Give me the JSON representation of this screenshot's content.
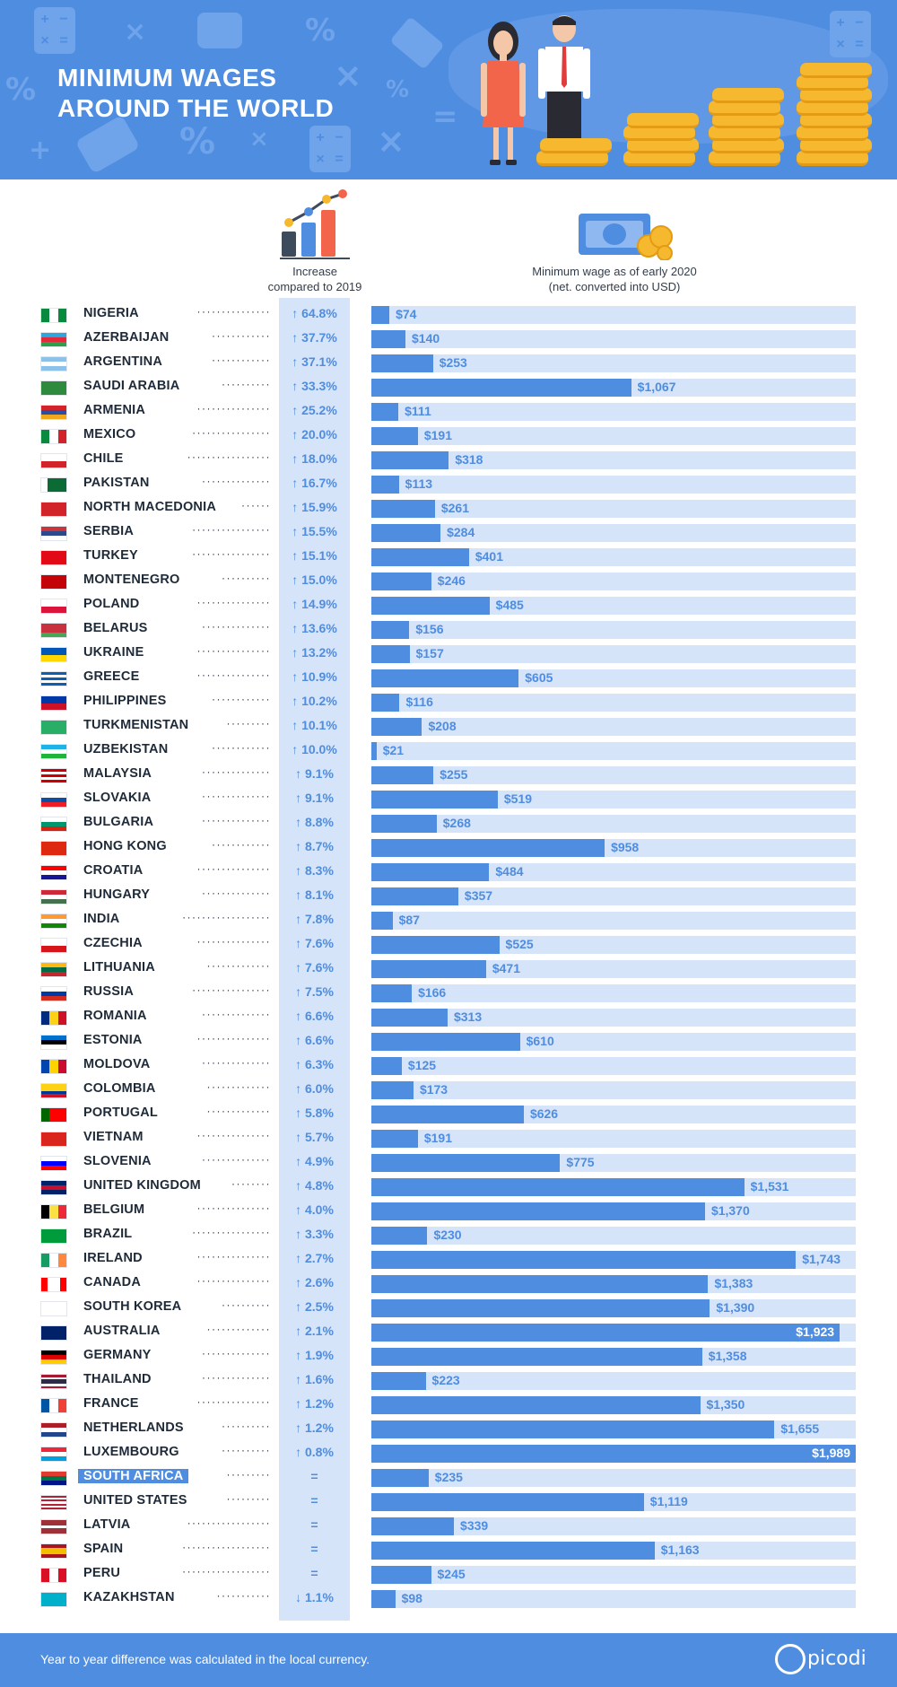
{
  "header": {
    "title_line1": "MINIMUM WAGES",
    "title_line2": "AROUND THE WORLD"
  },
  "columns": {
    "increase_line1": "Increase",
    "increase_line2": "compared to 2019",
    "wage_line1": "Minimum wage as of early 2020",
    "wage_line2": "(net. converted into USD)"
  },
  "footer": {
    "note": "Year to year difference was calculated in the local currency.",
    "brand": "picodi"
  },
  "colors": {
    "accent": "#4f8de0",
    "track": "#d5e4f8",
    "text": "#1f2a38"
  },
  "chart_data": {
    "type": "bar",
    "orientation": "horizontal",
    "xlim": [
      0,
      1989
    ],
    "rows": [
      {
        "country": "NIGERIA",
        "increase": "↑ 64.8%",
        "wage": 74,
        "label": "$74",
        "flag": "nigeria"
      },
      {
        "country": "AZERBAIJAN",
        "increase": "↑ 37.7%",
        "wage": 140,
        "label": "$140",
        "flag": "azerbaijan"
      },
      {
        "country": "ARGENTINA",
        "increase": "↑ 37.1%",
        "wage": 253,
        "label": "$253",
        "flag": "argentina"
      },
      {
        "country": "SAUDI ARABIA",
        "increase": "↑ 33.3%",
        "wage": 1067,
        "label": "$1,067",
        "flag": "saudi-arabia"
      },
      {
        "country": "ARMENIA",
        "increase": "↑ 25.2%",
        "wage": 111,
        "label": "$111",
        "flag": "armenia"
      },
      {
        "country": "MEXICO",
        "increase": "↑ 20.0%",
        "wage": 191,
        "label": "$191",
        "flag": "mexico"
      },
      {
        "country": "CHILE",
        "increase": "↑ 18.0%",
        "wage": 318,
        "label": "$318",
        "flag": "chile"
      },
      {
        "country": "PAKISTAN",
        "increase": "↑ 16.7%",
        "wage": 113,
        "label": "$113",
        "flag": "pakistan"
      },
      {
        "country": "NORTH MACEDONIA",
        "increase": "↑ 15.9%",
        "wage": 261,
        "label": "$261",
        "flag": "north-macedonia"
      },
      {
        "country": "SERBIA",
        "increase": "↑ 15.5%",
        "wage": 284,
        "label": "$284",
        "flag": "serbia"
      },
      {
        "country": "TURKEY",
        "increase": "↑ 15.1%",
        "wage": 401,
        "label": "$401",
        "flag": "turkey"
      },
      {
        "country": "MONTENEGRO",
        "increase": "↑ 15.0%",
        "wage": 246,
        "label": "$246",
        "flag": "montenegro"
      },
      {
        "country": "POLAND",
        "increase": "↑ 14.9%",
        "wage": 485,
        "label": "$485",
        "flag": "poland"
      },
      {
        "country": "BELARUS",
        "increase": "↑ 13.6%",
        "wage": 156,
        "label": "$156",
        "flag": "belarus"
      },
      {
        "country": "UKRAINE",
        "increase": "↑ 13.2%",
        "wage": 157,
        "label": "$157",
        "flag": "ukraine"
      },
      {
        "country": "GREECE",
        "increase": "↑ 10.9%",
        "wage": 605,
        "label": "$605",
        "flag": "greece"
      },
      {
        "country": "PHILIPPINES",
        "increase": "↑ 10.2%",
        "wage": 116,
        "label": "$116",
        "flag": "philippines"
      },
      {
        "country": "TURKMENISTAN",
        "increase": "↑ 10.1%",
        "wage": 208,
        "label": "$208",
        "flag": "turkmenistan"
      },
      {
        "country": "UZBEKISTAN",
        "increase": "↑ 10.0%",
        "wage": 21,
        "label": "$21",
        "flag": "uzbekistan"
      },
      {
        "country": "MALAYSIA",
        "increase": "↑ 9.1%",
        "wage": 255,
        "label": "$255",
        "flag": "malaysia"
      },
      {
        "country": "SLOVAKIA",
        "increase": "↑ 9.1%",
        "wage": 519,
        "label": "$519",
        "flag": "slovakia"
      },
      {
        "country": "BULGARIA",
        "increase": "↑ 8.8%",
        "wage": 268,
        "label": "$268",
        "flag": "bulgaria"
      },
      {
        "country": "HONG KONG",
        "increase": "↑ 8.7%",
        "wage": 958,
        "label": "$958",
        "flag": "hong-kong"
      },
      {
        "country": "CROATIA",
        "increase": "↑ 8.3%",
        "wage": 484,
        "label": "$484",
        "flag": "croatia"
      },
      {
        "country": "HUNGARY",
        "increase": "↑ 8.1%",
        "wage": 357,
        "label": "$357",
        "flag": "hungary"
      },
      {
        "country": "INDIA",
        "increase": "↑ 7.8%",
        "wage": 87,
        "label": "$87",
        "flag": "india"
      },
      {
        "country": "CZECHIA",
        "increase": "↑ 7.6%",
        "wage": 525,
        "label": "$525",
        "flag": "czechia"
      },
      {
        "country": "LITHUANIA",
        "increase": "↑ 7.6%",
        "wage": 471,
        "label": "$471",
        "flag": "lithuania"
      },
      {
        "country": "RUSSIA",
        "increase": "↑ 7.5%",
        "wage": 166,
        "label": "$166",
        "flag": "russia"
      },
      {
        "country": "ROMANIA",
        "increase": "↑ 6.6%",
        "wage": 313,
        "label": "$313",
        "flag": "romania"
      },
      {
        "country": "ESTONIA",
        "increase": "↑ 6.6%",
        "wage": 610,
        "label": "$610",
        "flag": "estonia"
      },
      {
        "country": "MOLDOVA",
        "increase": "↑ 6.3%",
        "wage": 125,
        "label": "$125",
        "flag": "moldova"
      },
      {
        "country": "COLOMBIA",
        "increase": "↑ 6.0%",
        "wage": 173,
        "label": "$173",
        "flag": "colombia"
      },
      {
        "country": "PORTUGAL",
        "increase": "↑ 5.8%",
        "wage": 626,
        "label": "$626",
        "flag": "portugal"
      },
      {
        "country": "VIETNAM",
        "increase": "↑ 5.7%",
        "wage": 191,
        "label": "$191",
        "flag": "vietnam"
      },
      {
        "country": "SLOVENIA",
        "increase": "↑ 4.9%",
        "wage": 775,
        "label": "$775",
        "flag": "slovenia"
      },
      {
        "country": "UNITED KINGDOM",
        "increase": "↑ 4.8%",
        "wage": 1531,
        "label": "$1,531",
        "flag": "united-kingdom"
      },
      {
        "country": "BELGIUM",
        "increase": "↑ 4.0%",
        "wage": 1370,
        "label": "$1,370",
        "flag": "belgium"
      },
      {
        "country": "BRAZIL",
        "increase": "↑ 3.3%",
        "wage": 230,
        "label": "$230",
        "flag": "brazil"
      },
      {
        "country": "IRELAND",
        "increase": "↑ 2.7%",
        "wage": 1743,
        "label": "$1,743",
        "flag": "ireland"
      },
      {
        "country": "CANADA",
        "increase": "↑ 2.6%",
        "wage": 1383,
        "label": "$1,383",
        "flag": "canada"
      },
      {
        "country": "SOUTH KOREA",
        "increase": "↑ 2.5%",
        "wage": 1390,
        "label": "$1,390",
        "flag": "south-korea"
      },
      {
        "country": "AUSTRALIA",
        "increase": "↑ 2.1%",
        "wage": 1923,
        "label": "$1,923",
        "flag": "australia"
      },
      {
        "country": "GERMANY",
        "increase": "↑ 1.9%",
        "wage": 1358,
        "label": "$1,358",
        "flag": "germany"
      },
      {
        "country": "THAILAND",
        "increase": "↑ 1.6%",
        "wage": 223,
        "label": "$223",
        "flag": "thailand"
      },
      {
        "country": "FRANCE",
        "increase": "↑ 1.2%",
        "wage": 1350,
        "label": "$1,350",
        "flag": "france"
      },
      {
        "country": "NETHERLANDS",
        "increase": "↑ 1.2%",
        "wage": 1655,
        "label": "$1,655",
        "flag": "netherlands"
      },
      {
        "country": "LUXEMBOURG",
        "increase": "↑ 0.8%",
        "wage": 1989,
        "label": "$1,989",
        "flag": "luxembourg"
      },
      {
        "country": "SOUTH AFRICA",
        "increase": "=",
        "wage": 235,
        "label": "$235",
        "flag": "south-africa",
        "highlight": true
      },
      {
        "country": "UNITED STATES",
        "increase": "=",
        "wage": 1119,
        "label": "$1,119",
        "flag": "united-states"
      },
      {
        "country": "LATVIA",
        "increase": "=",
        "wage": 339,
        "label": "$339",
        "flag": "latvia"
      },
      {
        "country": "SPAIN",
        "increase": "=",
        "wage": 1163,
        "label": "$1,163",
        "flag": "spain"
      },
      {
        "country": "PERU",
        "increase": "=",
        "wage": 245,
        "label": "$245",
        "flag": "peru"
      },
      {
        "country": "KAZAKHSTAN",
        "increase": "↓ 1.1%",
        "wage": 98,
        "label": "$98",
        "flag": "kazakhstan"
      }
    ]
  }
}
